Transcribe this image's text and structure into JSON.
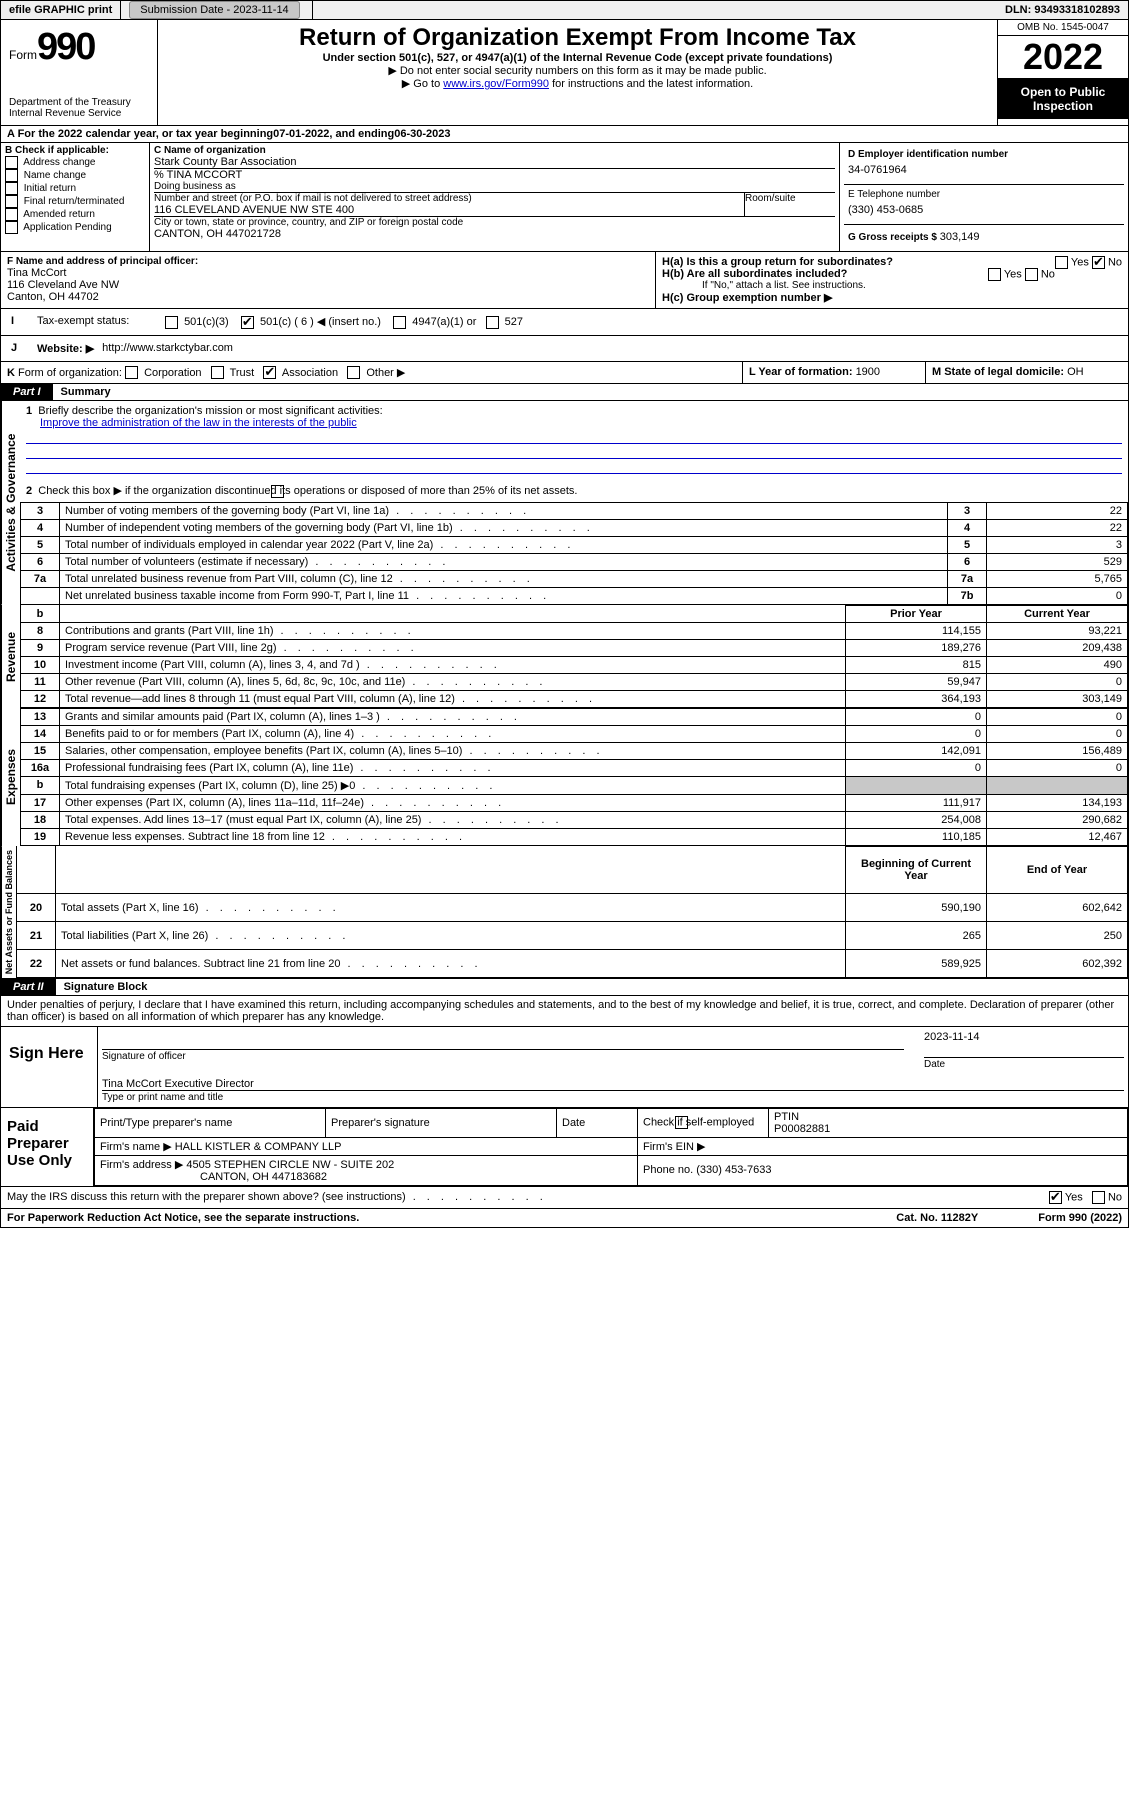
{
  "topbar": {
    "efile": "efile GRAPHIC print",
    "submission_label": "Submission Date - 2023-11-14",
    "dln_label": "DLN: 93493318102893"
  },
  "header": {
    "form_prefix": "Form",
    "form_number": "990",
    "dept": "Department of the Treasury Internal Revenue Service",
    "title": "Return of Organization Exempt From Income Tax",
    "sub1": "Under section 501(c), 527, or 4947(a)(1) of the Internal Revenue Code (except private foundations)",
    "sub2": "▶ Do not enter social security numbers on this form as it may be made public.",
    "sub3_pre": "▶ Go to ",
    "sub3_link": "www.irs.gov/Form990",
    "sub3_post": " for instructions and the latest information.",
    "omb": "OMB No. 1545-0047",
    "year": "2022",
    "open": "Open to Public Inspection"
  },
  "period": {
    "a_label": "A For the 2022 calendar year, or tax year beginning ",
    "begin": "07-01-2022",
    "mid": " , and ending ",
    "end": "06-30-2023"
  },
  "boxB": {
    "label": "B Check if applicable:",
    "items": [
      "Address change",
      "Name change",
      "Initial return",
      "Final return/terminated",
      "Amended return",
      "Application Pending"
    ]
  },
  "boxC": {
    "name_label": "C Name of organization",
    "name": "Stark County Bar Association",
    "care_of": "% TINA MCCORT",
    "dba_label": "Doing business as",
    "street_label": "Number and street (or P.O. box if mail is not delivered to street address)",
    "room_label": "Room/suite",
    "street": "116 CLEVELAND AVENUE NW STE 400",
    "city_label": "City or town, state or province, country, and ZIP or foreign postal code",
    "city": "CANTON, OH  447021728"
  },
  "boxD": {
    "label": "D Employer identification number",
    "value": "34-0761964"
  },
  "boxE": {
    "label": "E Telephone number",
    "value": "(330) 453-0685"
  },
  "boxG": {
    "label": "G Gross receipts $ ",
    "value": "303,149"
  },
  "boxF": {
    "label": "F Name and address of principal officer:",
    "name": "Tina McCort",
    "addr1": "116 Cleveland Ave NW",
    "addr2": "Canton, OH  44702"
  },
  "boxH": {
    "a": "H(a)  Is this a group return for subordinates?",
    "a_yes": "Yes",
    "a_no": "No",
    "b": "H(b)  Are all subordinates included?",
    "b_yes": "Yes",
    "b_no": "No",
    "b_note": "If \"No,\" attach a list. See instructions.",
    "c": "H(c)  Group exemption number ▶"
  },
  "taxexempt": {
    "i": "I",
    "label": "Tax-exempt status:",
    "opt1": "501(c)(3)",
    "opt2": "501(c) ( 6 ) ◀ (insert no.)",
    "opt3": "4947(a)(1) or",
    "opt4": "527"
  },
  "boxJ": {
    "j": "J",
    "label": "Website: ▶ ",
    "value": "http://www.starkctybar.com"
  },
  "boxK": {
    "k": "K",
    "label": "Form of organization:",
    "opts": [
      "Corporation",
      "Trust",
      "Association",
      "Other ▶"
    ]
  },
  "boxL": {
    "label": "L Year of formation: ",
    "value": "1900"
  },
  "boxM": {
    "label": "M State of legal domicile: ",
    "value": "OH"
  },
  "part1": {
    "part": "Part I",
    "title": "Summary"
  },
  "summary": {
    "line1_label": "Briefly describe the organization's mission or most significant activities:",
    "line1_text": "Improve the administration of the law in the interests of the public",
    "line2": "Check this box ▶       if the organization discontinued its operations or disposed of more than 25% of its net assets.",
    "rows_gov": [
      {
        "n": "3",
        "t": "Number of voting members of the governing body (Part VI, line 1a)",
        "r": "3",
        "v": "22"
      },
      {
        "n": "4",
        "t": "Number of independent voting members of the governing body (Part VI, line 1b)",
        "r": "4",
        "v": "22"
      },
      {
        "n": "5",
        "t": "Total number of individuals employed in calendar year 2022 (Part V, line 2a)",
        "r": "5",
        "v": "3"
      },
      {
        "n": "6",
        "t": "Total number of volunteers (estimate if necessary)",
        "r": "6",
        "v": "529"
      },
      {
        "n": "7a",
        "t": "Total unrelated business revenue from Part VIII, column (C), line 12",
        "r": "7a",
        "v": "5,765"
      },
      {
        "n": "",
        "t": "Net unrelated business taxable income from Form 990-T, Part I, line 11",
        "r": "7b",
        "v": "0"
      }
    ],
    "col_prior": "Prior Year",
    "col_current": "Current Year",
    "rows_rev": [
      {
        "n": "8",
        "t": "Contributions and grants (Part VIII, line 1h)",
        "p": "114,155",
        "c": "93,221"
      },
      {
        "n": "9",
        "t": "Program service revenue (Part VIII, line 2g)",
        "p": "189,276",
        "c": "209,438"
      },
      {
        "n": "10",
        "t": "Investment income (Part VIII, column (A), lines 3, 4, and 7d )",
        "p": "815",
        "c": "490"
      },
      {
        "n": "11",
        "t": "Other revenue (Part VIII, column (A), lines 5, 6d, 8c, 9c, 10c, and 11e)",
        "p": "59,947",
        "c": "0"
      },
      {
        "n": "12",
        "t": "Total revenue—add lines 8 through 11 (must equal Part VIII, column (A), line 12)",
        "p": "364,193",
        "c": "303,149"
      }
    ],
    "rows_exp": [
      {
        "n": "13",
        "t": "Grants and similar amounts paid (Part IX, column (A), lines 1–3 )",
        "p": "0",
        "c": "0"
      },
      {
        "n": "14",
        "t": "Benefits paid to or for members (Part IX, column (A), line 4)",
        "p": "0",
        "c": "0"
      },
      {
        "n": "15",
        "t": "Salaries, other compensation, employee benefits (Part IX, column (A), lines 5–10)",
        "p": "142,091",
        "c": "156,489"
      },
      {
        "n": "16a",
        "t": "Professional fundraising fees (Part IX, column (A), line 11e)",
        "p": "0",
        "c": "0"
      },
      {
        "n": "b",
        "t": "Total fundraising expenses (Part IX, column (D), line 25) ▶0",
        "p": "",
        "c": "",
        "shade": true
      },
      {
        "n": "17",
        "t": "Other expenses (Part IX, column (A), lines 11a–11d, 11f–24e)",
        "p": "111,917",
        "c": "134,193"
      },
      {
        "n": "18",
        "t": "Total expenses. Add lines 13–17 (must equal Part IX, column (A), line 25)",
        "p": "254,008",
        "c": "290,682"
      },
      {
        "n": "19",
        "t": "Revenue less expenses. Subtract line 18 from line 12",
        "p": "110,185",
        "c": "12,467"
      }
    ],
    "col_begin": "Beginning of Current Year",
    "col_end": "End of Year",
    "rows_net": [
      {
        "n": "20",
        "t": "Total assets (Part X, line 16)",
        "p": "590,190",
        "c": "602,642"
      },
      {
        "n": "21",
        "t": "Total liabilities (Part X, line 26)",
        "p": "265",
        "c": "250"
      },
      {
        "n": "22",
        "t": "Net assets or fund balances. Subtract line 21 from line 20",
        "p": "589,925",
        "c": "602,392"
      }
    ]
  },
  "part2": {
    "part": "Part II",
    "title": "Signature Block"
  },
  "sig": {
    "decl": "Under penalties of perjury, I declare that I have examined this return, including accompanying schedules and statements, and to the best of my knowledge and belief, it is true, correct, and complete. Declaration of preparer (other than officer) is based on all information of which preparer has any knowledge.",
    "sign_here": "Sign Here",
    "sig_officer": "Signature of officer",
    "date": "Date",
    "sig_date": "2023-11-14",
    "officer_name": "Tina McCort  Executive Director",
    "type_name": "Type or print name and title",
    "paid": "Paid Preparer Use Only",
    "pt_name_lbl": "Print/Type preparer's name",
    "pt_sig_lbl": "Preparer's signature",
    "pt_date_lbl": "Date",
    "pt_check": "Check        if self-employed",
    "ptin_lbl": "PTIN",
    "ptin": "P00082881",
    "firm_name_lbl": "Firm's name    ▶ ",
    "firm_name": "HALL KISTLER & COMPANY LLP",
    "firm_ein_lbl": "Firm's EIN ▶",
    "firm_addr_lbl": "Firm's address ▶ ",
    "firm_addr1": "4505 STEPHEN CIRCLE NW - SUITE 202",
    "firm_addr2": "CANTON, OH  447183682",
    "firm_phone_lbl": "Phone no. ",
    "firm_phone": "(330) 453-7633",
    "discuss": "May the IRS discuss this return with the preparer shown above? (see instructions)",
    "discuss_yes": "Yes",
    "discuss_no": "No"
  },
  "footer": {
    "left": "For Paperwork Reduction Act Notice, see the separate instructions.",
    "mid": "Cat. No. 11282Y",
    "right": "Form 990 (2022)"
  },
  "vlabels": {
    "gov": "Activities & Governance",
    "rev": "Revenue",
    "exp": "Expenses",
    "net": "Net Assets or Fund Balances"
  }
}
